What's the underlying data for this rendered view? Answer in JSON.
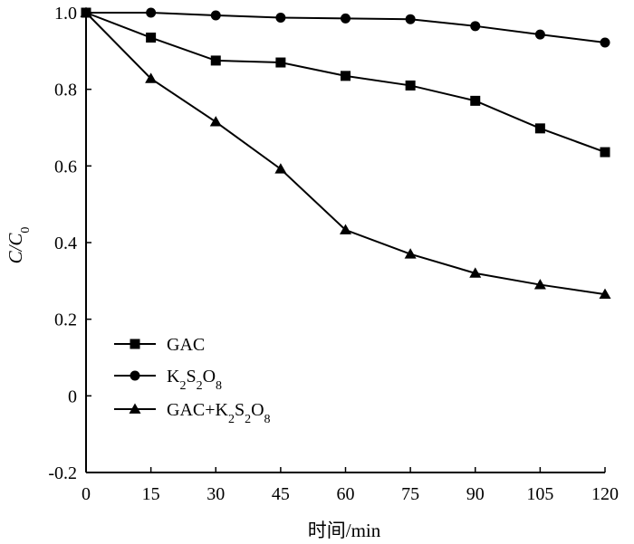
{
  "chart_data": {
    "type": "line",
    "xlabel": "时间/min",
    "ylabel": "C/C0",
    "xlim": [
      0,
      120
    ],
    "ylim": [
      -0.2,
      1.0
    ],
    "x": [
      0,
      15,
      30,
      45,
      60,
      75,
      90,
      105,
      120
    ],
    "x_ticks": [
      "0",
      "15",
      "30",
      "45",
      "60",
      "75",
      "90",
      "105",
      "120"
    ],
    "y_ticks": [
      "-0.2",
      "0",
      "0.2",
      "0.4",
      "0.6",
      "0.8",
      "1.0"
    ],
    "y_tick_values": [
      -0.2,
      0,
      0.2,
      0.4,
      0.6,
      0.8,
      1.0
    ],
    "grid": false,
    "legend_position": "bottom-left",
    "series": [
      {
        "name": "GAC",
        "marker": "square",
        "values": [
          1.0,
          0.935,
          0.875,
          0.87,
          0.835,
          0.81,
          0.77,
          0.698,
          0.636
        ]
      },
      {
        "name": "K2S2O8",
        "marker": "circle",
        "values": [
          1.0,
          1.0,
          0.993,
          0.987,
          0.985,
          0.983,
          0.965,
          0.943,
          0.922
        ]
      },
      {
        "name": "GAC+K2S2O8",
        "marker": "triangle",
        "values": [
          1.0,
          0.828,
          0.715,
          0.592,
          0.433,
          0.37,
          0.32,
          0.29,
          0.265
        ]
      }
    ]
  }
}
